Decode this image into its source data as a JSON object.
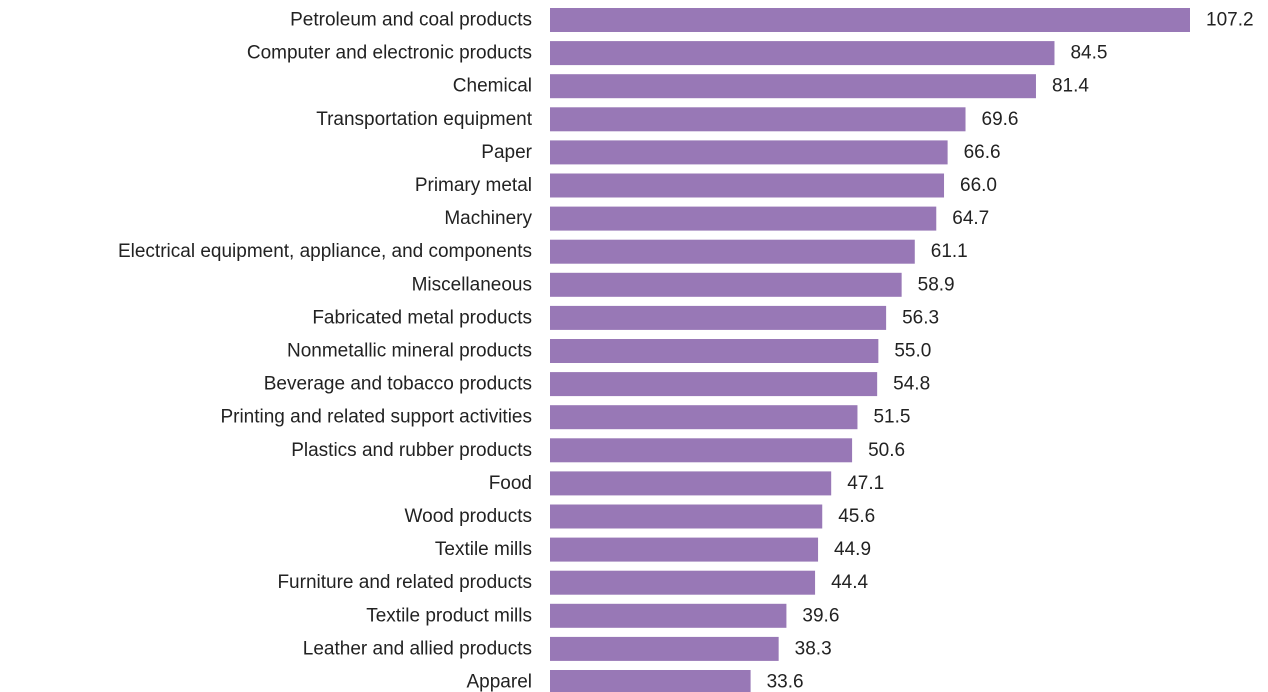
{
  "chart_data": {
    "type": "bar",
    "orientation": "horizontal",
    "title": "",
    "xlabel": "",
    "ylabel": "",
    "grid": false,
    "legend": "none",
    "xlim": [
      0,
      107.2
    ],
    "bar_color": "#9878b6",
    "categories": [
      "Petroleum and coal products",
      "Computer and electronic products",
      "Chemical",
      "Transportation equipment",
      "Paper",
      "Primary metal",
      "Machinery",
      "Electrical equipment, appliance, and components",
      "Miscellaneous",
      "Fabricated metal products",
      "Nonmetallic mineral products",
      "Beverage and tobacco products",
      "Printing and related support activities",
      "Plastics and rubber products",
      "Food",
      "Wood products",
      "Textile mills",
      "Furniture and related products",
      "Textile product mills",
      "Leather and allied products",
      "Apparel"
    ],
    "values": [
      107.2,
      84.5,
      81.4,
      69.6,
      66.6,
      66.0,
      64.7,
      61.1,
      58.9,
      56.3,
      55.0,
      54.8,
      51.5,
      50.6,
      47.1,
      45.6,
      44.9,
      44.4,
      39.6,
      38.3,
      33.6
    ],
    "value_labels": [
      "107.2",
      "84.5",
      "81.4",
      "69.6",
      "66.6",
      "66.0",
      "64.7",
      "61.1",
      "58.9",
      "56.3",
      "55.0",
      "54.8",
      "51.5",
      "50.6",
      "47.1",
      "45.6",
      "44.9",
      "44.4",
      "39.6",
      "38.3",
      "33.6"
    ]
  }
}
